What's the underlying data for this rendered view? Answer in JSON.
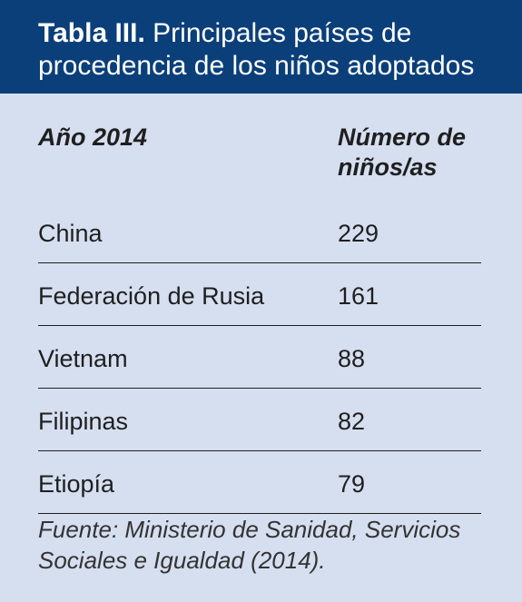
{
  "title": {
    "lead": "Tabla III.",
    "text": "Principales países de procedencia de los niños adoptados"
  },
  "table": {
    "headers": [
      "Año 2014",
      "Número de niños/as"
    ],
    "rows": [
      {
        "country": "China",
        "count": "229"
      },
      {
        "country": "Federación de Rusia",
        "count": "161"
      },
      {
        "country": "Vietnam",
        "count": "88"
      },
      {
        "country": "Filipinas",
        "count": "82"
      },
      {
        "country": "Etiopía",
        "count": "79"
      }
    ]
  },
  "source": "Fuente: Ministerio de Sanidad, Servicios Sociales e Igualdad (2014).",
  "colors": {
    "header_bg": "#0a3f7a",
    "panel_bg": "#d6dff0"
  }
}
